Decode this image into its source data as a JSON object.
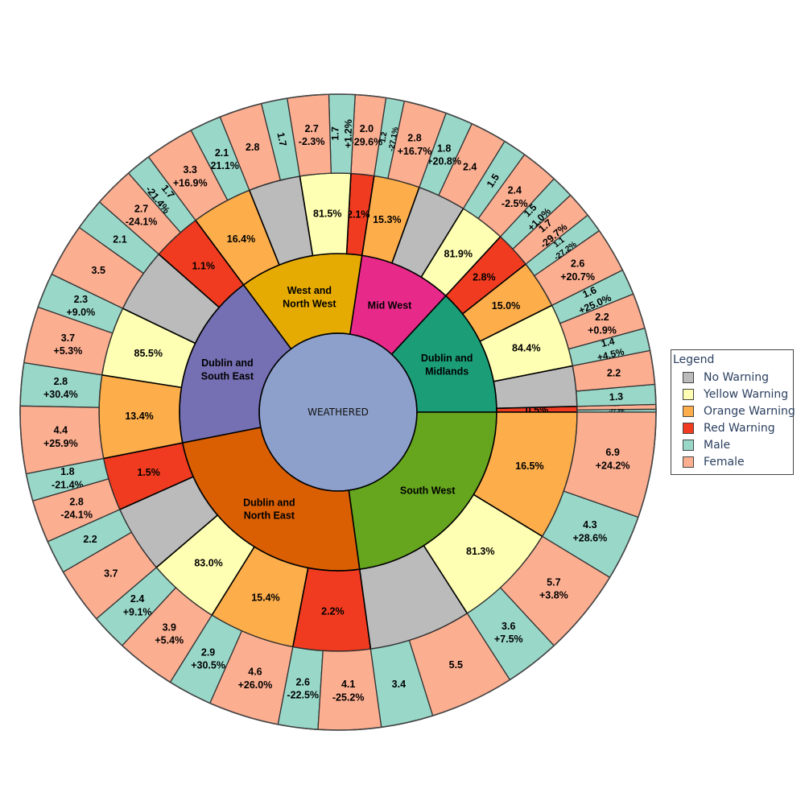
{
  "chart_data": {
    "type": "sunburst",
    "root": {
      "label": "WEATHERED",
      "color": "#8da0cb"
    },
    "regions": [
      {
        "name": "Dublin and\nMidlands",
        "color": "#1b9e77",
        "warnings": [
          {
            "warning": "Red Warning",
            "label": "0.5%",
            "weight": 0.5,
            "genders": [
              {
                "gender": "Male",
                "value": 1.0,
                "change": "-24.7%"
              },
              {
                "gender": "Female",
                "value": 1.6,
                "change": "-27.3%"
              }
            ]
          },
          {
            "warning": "No Warning",
            "label": "",
            "weight": 3.5,
            "genders": [
              {
                "gender": "Male",
                "value": 1.3,
                "change": ""
              },
              {
                "gender": "Female",
                "value": 2.2,
                "change": ""
              }
            ]
          },
          {
            "warning": "Yellow Warning",
            "label": "84.4%",
            "weight": 5.5,
            "genders": [
              {
                "gender": "Male",
                "value": 1.4,
                "change": "+4.5%"
              },
              {
                "gender": "Female",
                "value": 2.2,
                "change": "+0.9%"
              },
              {
                "gender": "Male",
                "value": 1.6,
                "change": "+25.0%"
              }
            ]
          },
          {
            "warning": "Orange Warning",
            "label": "15.0%",
            "weight": 4.2,
            "genders": [
              {
                "gender": "Female",
                "value": 2.6,
                "change": "+20.7%"
              },
              {
                "gender": "Male",
                "value": 1.1,
                "change": "-27.2%"
              }
            ]
          },
          {
            "warning": "Red Warning",
            "label": "2.8%",
            "weight": 3.2,
            "genders": [
              {
                "gender": "Female",
                "value": 1.7,
                "change": "-29.7%"
              },
              {
                "gender": "Male",
                "value": 1.5,
                "change": "+1.0%"
              }
            ]
          }
        ]
      },
      {
        "name": "Mid West",
        "color": "#e7298a",
        "warnings": [
          {
            "warning": "Yellow Warning",
            "label": "81.9%",
            "weight": 4.0,
            "genders": [
              {
                "gender": "Female",
                "value": 2.4,
                "change": "-2.5%"
              },
              {
                "gender": "Male",
                "value": 1.5,
                "change": ""
              }
            ]
          },
          {
            "warning": "No Warning",
            "label": "",
            "weight": 4.2,
            "genders": [
              {
                "gender": "Female",
                "value": 2.4,
                "change": ""
              },
              {
                "gender": "Male",
                "value": 1.8,
                "change": "+20.8%"
              }
            ]
          },
          {
            "warning": "Orange Warning",
            "label": "15.3%",
            "weight": 4.0,
            "genders": [
              {
                "gender": "Female",
                "value": 2.8,
                "change": "+16.7%"
              },
              {
                "gender": "Male",
                "value": 1.2,
                "change": "-27.1%"
              }
            ]
          }
        ]
      },
      {
        "name": "West and\nNorth West",
        "color": "#e6ab02",
        "warnings": [
          {
            "warning": "Red Warning",
            "label": "2.1%",
            "weight": 2.0,
            "genders": [
              {
                "gender": "Female",
                "value": 2.0,
                "change": "-29.6%"
              }
            ]
          },
          {
            "warning": "Yellow Warning",
            "label": "81.5%",
            "weight": 4.4,
            "genders": [
              {
                "gender": "Male",
                "value": 1.7,
                "change": "+1.2%"
              },
              {
                "gender": "Female",
                "value": 2.7,
                "change": "-2.3%"
              }
            ]
          },
          {
            "warning": "No Warning",
            "label": "",
            "weight": 4.5,
            "genders": [
              {
                "gender": "Male",
                "value": 1.7,
                "change": ""
              },
              {
                "gender": "Female",
                "value": 2.8,
                "change": ""
              }
            ]
          },
          {
            "warning": "Orange Warning",
            "label": "16.4%",
            "weight": 5.3,
            "genders": [
              {
                "gender": "Male",
                "value": 2.1,
                "change": "+21.1%"
              },
              {
                "gender": "Female",
                "value": 3.3,
                "change": "+16.9%"
              }
            ]
          }
        ]
      },
      {
        "name": "Dublin and\nSouth East",
        "color": "#7570b3",
        "warnings": [
          {
            "warning": "Red Warning",
            "label": "1.1%",
            "weight": 4.3,
            "genders": [
              {
                "gender": "Male",
                "value": 1.7,
                "change": "-21.4%"
              },
              {
                "gender": "Female",
                "value": 2.7,
                "change": "-24.1%"
              }
            ]
          },
          {
            "warning": "No Warning",
            "label": "",
            "weight": 5.6,
            "genders": [
              {
                "gender": "Male",
                "value": 2.1,
                "change": ""
              },
              {
                "gender": "Female",
                "value": 3.5,
                "change": ""
              }
            ]
          },
          {
            "warning": "Yellow Warning",
            "label": "85.5%",
            "weight": 6.0,
            "genders": [
              {
                "gender": "Male",
                "value": 2.3,
                "change": "+9.0%"
              },
              {
                "gender": "Female",
                "value": 3.7,
                "change": "+5.3%"
              }
            ]
          },
          {
            "warning": "Orange Warning",
            "label": "13.4%",
            "weight": 7.2,
            "genders": [
              {
                "gender": "Male",
                "value": 2.8,
                "change": "+30.4%"
              },
              {
                "gender": "Female",
                "value": 4.4,
                "change": "+25.9%"
              }
            ]
          }
        ]
      },
      {
        "name": "Dublin and\nNorth East",
        "color": "#d95f02",
        "warnings": [
          {
            "warning": "Red Warning",
            "label": "1.5%",
            "weight": 4.6,
            "genders": [
              {
                "gender": "Male",
                "value": 1.8,
                "change": "-21.4%"
              },
              {
                "gender": "Female",
                "value": 2.8,
                "change": "-24.1%"
              }
            ]
          },
          {
            "warning": "No Warning",
            "label": "",
            "weight": 5.9,
            "genders": [
              {
                "gender": "Male",
                "value": 2.2,
                "change": ""
              },
              {
                "gender": "Female",
                "value": 3.7,
                "change": ""
              }
            ]
          },
          {
            "warning": "Yellow Warning",
            "label": "83.0%",
            "weight": 6.3,
            "genders": [
              {
                "gender": "Male",
                "value": 2.4,
                "change": "+9.1%"
              },
              {
                "gender": "Female",
                "value": 3.9,
                "change": "+5.4%"
              }
            ]
          },
          {
            "warning": "Orange Warning",
            "label": "15.4%",
            "weight": 7.5,
            "genders": [
              {
                "gender": "Male",
                "value": 2.9,
                "change": "+30.5%"
              },
              {
                "gender": "Female",
                "value": 4.6,
                "change": "+26.0%"
              }
            ]
          },
          {
            "warning": "Red Warning",
            "label": "2.2%",
            "weight": 6.7,
            "genders": [
              {
                "gender": "Male",
                "value": 2.6,
                "change": "-22.5%"
              },
              {
                "gender": "Female",
                "value": 4.1,
                "change": "-25.2%"
              }
            ]
          }
        ]
      },
      {
        "name": "South West",
        "color": "#66a61e",
        "warnings": [
          {
            "warning": "No Warning",
            "label": "",
            "weight": 8.9,
            "genders": [
              {
                "gender": "Male",
                "value": 3.4,
                "change": ""
              },
              {
                "gender": "Female",
                "value": 5.5,
                "change": ""
              }
            ]
          },
          {
            "warning": "Yellow Warning",
            "label": "81.3%",
            "weight": 9.3,
            "genders": [
              {
                "gender": "Male",
                "value": 3.6,
                "change": "+7.5%"
              },
              {
                "gender": "Female",
                "value": 5.7,
                "change": "+3.8%"
              }
            ]
          },
          {
            "warning": "Orange Warning",
            "label": "16.5%",
            "weight": 11.2,
            "genders": [
              {
                "gender": "Male",
                "value": 4.3,
                "change": "+28.6%"
              },
              {
                "gender": "Female",
                "value": 6.9,
                "change": "+24.2%"
              }
            ]
          }
        ]
      }
    ],
    "warning_colors": {
      "No Warning": "#bbbbbb",
      "Yellow Warning": "#ffffb3",
      "Orange Warning": "#fdae4b",
      "Red Warning": "#f03b20"
    },
    "gender_colors": {
      "Male": "#99d8c9",
      "Female": "#fcae91"
    }
  },
  "legend": {
    "title": "Legend",
    "items": [
      {
        "label": "No Warning",
        "color": "#bbbbbb"
      },
      {
        "label": "Yellow Warning",
        "color": "#ffffb3"
      },
      {
        "label": "Orange Warning",
        "color": "#fdae4b"
      },
      {
        "label": "Red Warning",
        "color": "#f03b20"
      },
      {
        "label": "Male",
        "color": "#99d8c9"
      },
      {
        "label": "Female",
        "color": "#fcae91"
      }
    ]
  }
}
